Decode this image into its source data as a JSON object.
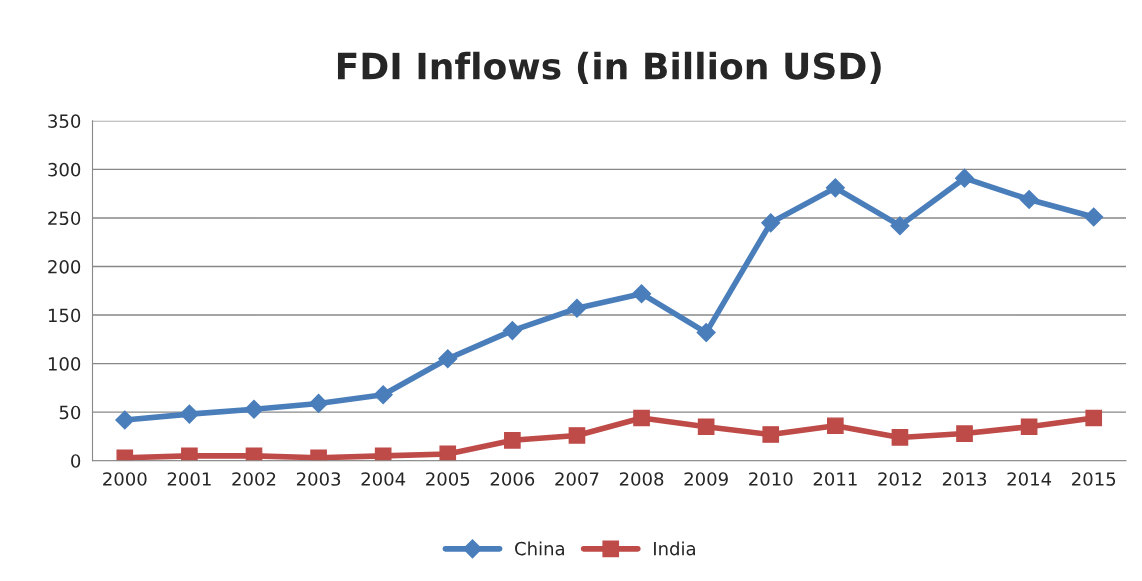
{
  "chart_data": {
    "type": "line",
    "title": "FDI Inflows (in Billion USD)",
    "categories": [
      "2000",
      "2001",
      "2002",
      "2003",
      "2004",
      "2005",
      "2006",
      "2007",
      "2008",
      "2009",
      "2010",
      "2011",
      "2012",
      "2013",
      "2014",
      "2015"
    ],
    "series": [
      {
        "name": "China",
        "color": "#4a7ebb",
        "marker": "diamond",
        "values": [
          42,
          48,
          53,
          59,
          68,
          105,
          134,
          157,
          172,
          132,
          245,
          281,
          242,
          291,
          269,
          251
        ]
      },
      {
        "name": "India",
        "color": "#be4b48",
        "marker": "square",
        "values": [
          3,
          5,
          5,
          3,
          5,
          7,
          21,
          26,
          44,
          35,
          27,
          36,
          24,
          28,
          35,
          44
        ]
      }
    ],
    "ylim": [
      0,
      350
    ],
    "yticks": [
      0,
      50,
      100,
      150,
      200,
      250,
      300,
      350
    ],
    "grid": "y",
    "legend": "bottom"
  }
}
